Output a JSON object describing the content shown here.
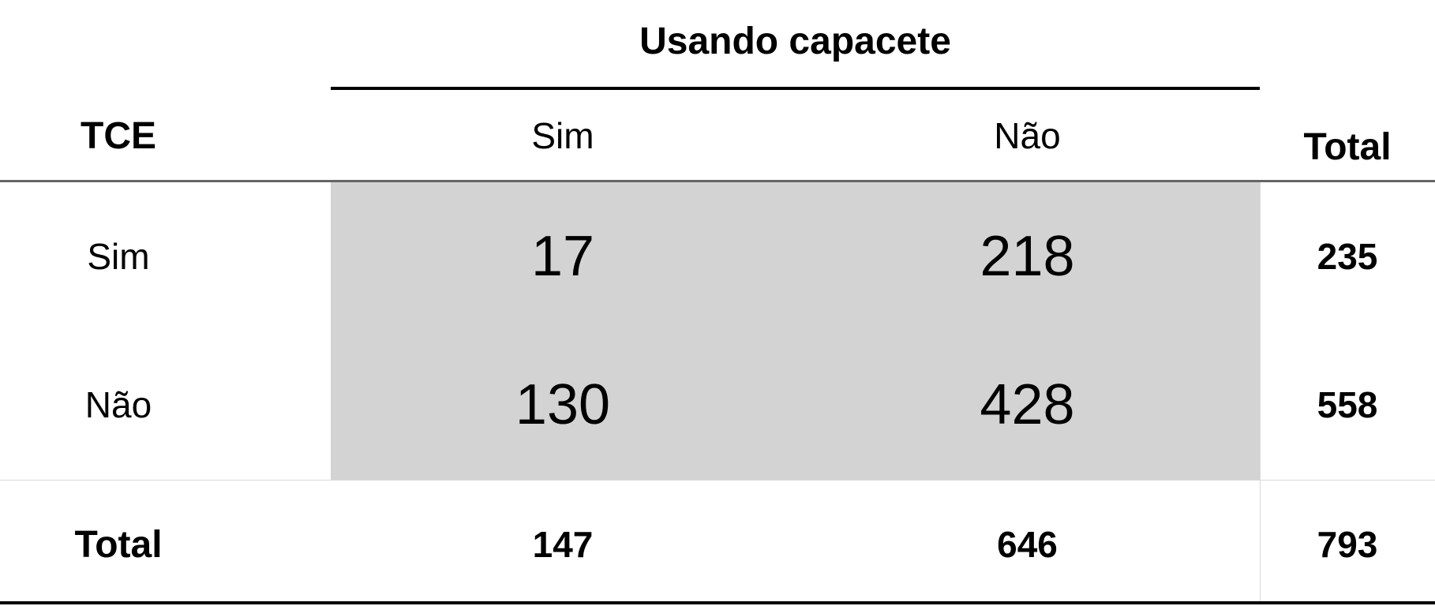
{
  "table": {
    "spanner_label": "Usando capacete",
    "row_header": "TCE",
    "column_headers": [
      "Sim",
      "Não"
    ],
    "total_header": "Total",
    "rows": [
      {
        "label": "Sim",
        "values": [
          "17",
          "218"
        ],
        "total": "235"
      },
      {
        "label": "Não",
        "values": [
          "130",
          "428"
        ],
        "total": "558"
      }
    ],
    "totals_row": {
      "label": "Total",
      "values": [
        "147",
        "646"
      ],
      "total": "793"
    }
  },
  "colors": {
    "shade": "#d3d3d3",
    "rule": "#000000",
    "header_rule": "#666666",
    "separator": "#d9d9d9"
  }
}
